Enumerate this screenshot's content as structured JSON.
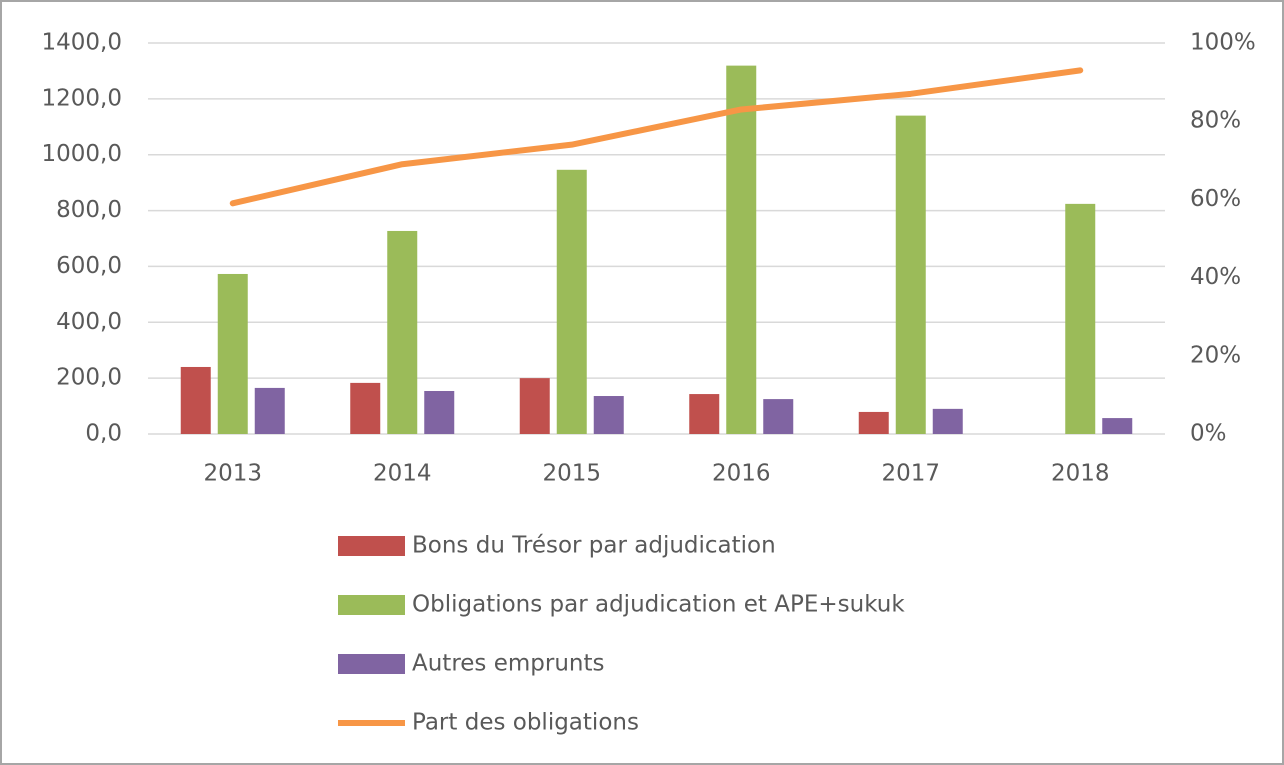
{
  "chart_data": {
    "type": "bar",
    "categories": [
      "2013",
      "2014",
      "2015",
      "2016",
      "2017",
      "2018"
    ],
    "series": [
      {
        "name": "Bons du Trésor par adjudication",
        "color": "#c0504d",
        "values": [
          240,
          183,
          200,
          143,
          79,
          null
        ]
      },
      {
        "name": "Obligations par adjudication et APE+sukuk",
        "color": "#9bbb59",
        "values": [
          573,
          727,
          946,
          1319,
          1140,
          824
        ]
      },
      {
        "name": "Autres emprunts",
        "color": "#8064a2",
        "values": [
          165,
          154,
          136,
          125,
          90,
          57
        ]
      },
      {
        "name": "Part des obligations",
        "color": "#f79646",
        "type": "line",
        "axis": "y2",
        "values": [
          59,
          69,
          74,
          83,
          87,
          93
        ]
      }
    ],
    "ylim": [
      0,
      1400
    ],
    "yticks": [
      {
        "value": 0,
        "label": "0,0"
      },
      {
        "value": 200,
        "label": "200,0"
      },
      {
        "value": 400,
        "label": "400,0"
      },
      {
        "value": 600,
        "label": "600,0"
      },
      {
        "value": 800,
        "label": "800,0"
      },
      {
        "value": 1000,
        "label": "1000,0"
      },
      {
        "value": 1200,
        "label": "1200,0"
      },
      {
        "value": 1400,
        "label": "1400,0"
      }
    ],
    "y2lim": [
      0,
      100
    ],
    "y2ticks": [
      {
        "value": 0,
        "label": "0%"
      },
      {
        "value": 20,
        "label": "20%"
      },
      {
        "value": 40,
        "label": "40%"
      },
      {
        "value": 60,
        "label": "60%"
      },
      {
        "value": 80,
        "label": "80%"
      },
      {
        "value": 100,
        "label": "100%"
      }
    ],
    "grid": true,
    "legend": "bottom"
  }
}
